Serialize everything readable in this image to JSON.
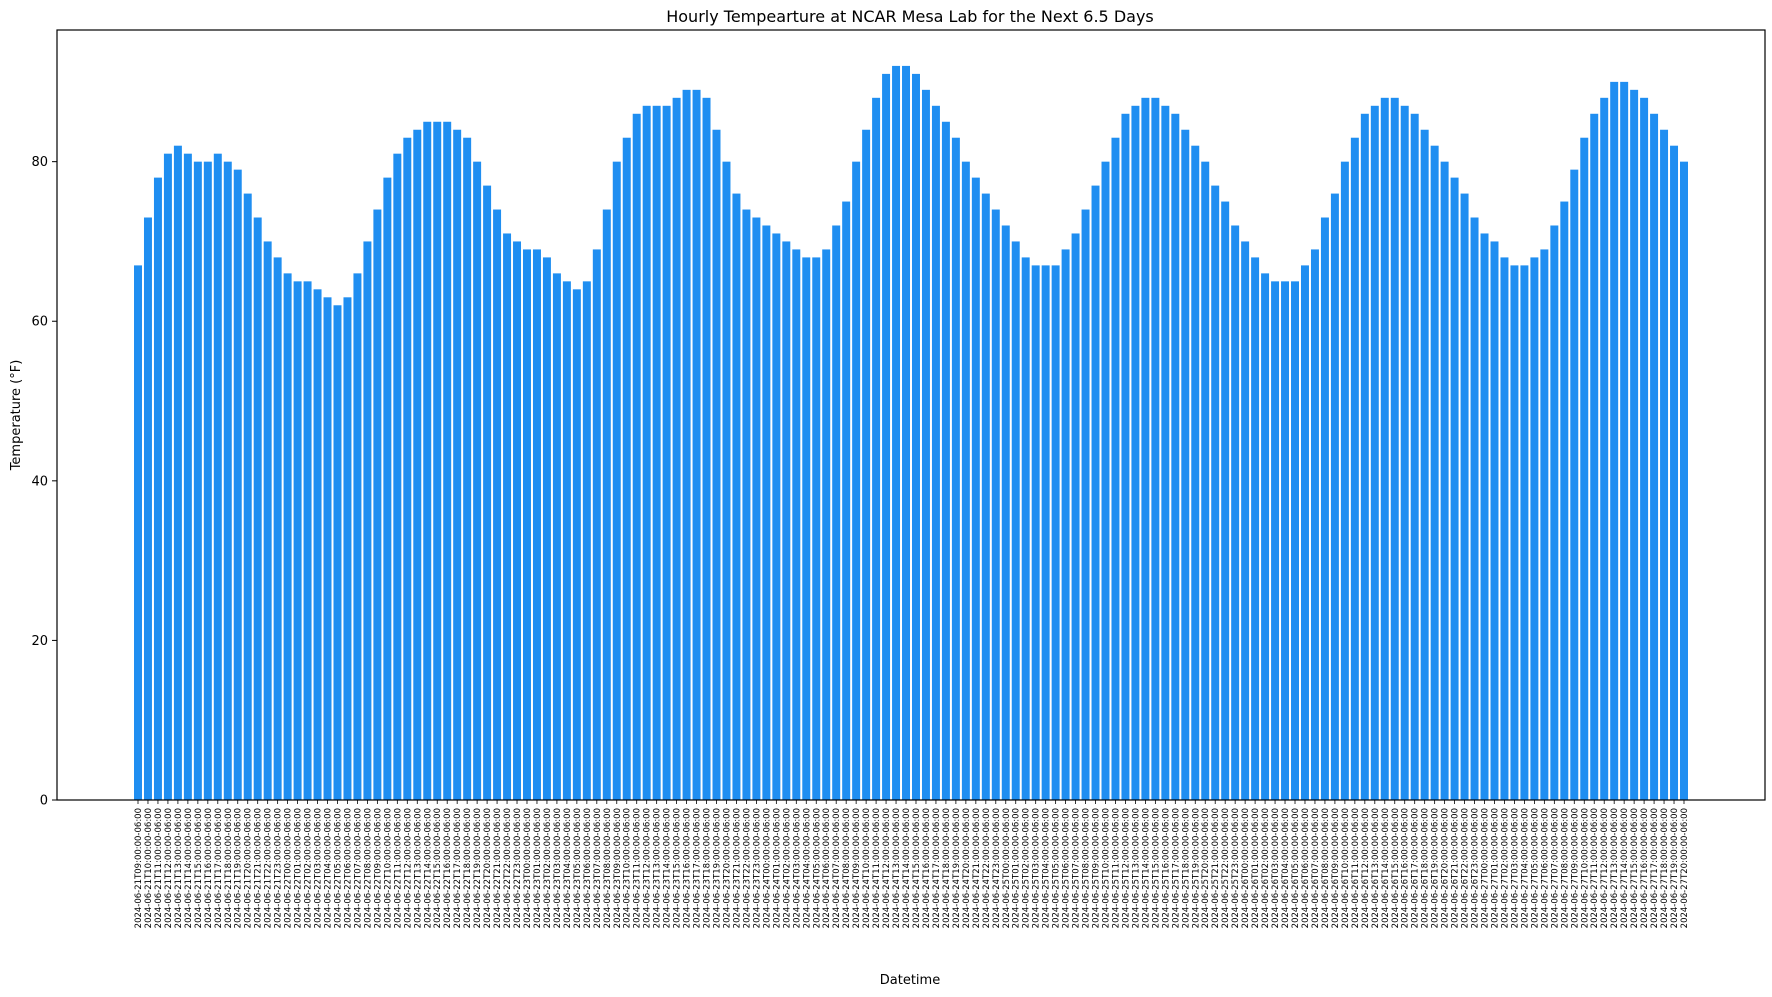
{
  "chart_data": {
    "type": "bar",
    "title": "Hourly Tempearture at NCAR Mesa Lab for the Next 6.5 Days",
    "xlabel": "Datetime",
    "ylabel": "Temperature (°F)",
    "ylim": [
      0,
      96.5
    ],
    "yticks": [
      0,
      20,
      40,
      60,
      80
    ],
    "grid": false,
    "bar_color": "#1f8ef1",
    "categories": [
      "2024-06-21T09:00:00-06:00",
      "2024-06-21T10:00:00-06:00",
      "2024-06-21T11:00:00-06:00",
      "2024-06-21T12:00:00-06:00",
      "2024-06-21T13:00:00-06:00",
      "2024-06-21T14:00:00-06:00",
      "2024-06-21T15:00:00-06:00",
      "2024-06-21T16:00:00-06:00",
      "2024-06-21T17:00:00-06:00",
      "2024-06-21T18:00:00-06:00",
      "2024-06-21T19:00:00-06:00",
      "2024-06-21T20:00:00-06:00",
      "2024-06-21T21:00:00-06:00",
      "2024-06-21T22:00:00-06:00",
      "2024-06-21T23:00:00-06:00",
      "2024-06-22T00:00:00-06:00",
      "2024-06-22T01:00:00-06:00",
      "2024-06-22T02:00:00-06:00",
      "2024-06-22T03:00:00-06:00",
      "2024-06-22T04:00:00-06:00",
      "2024-06-22T05:00:00-06:00",
      "2024-06-22T06:00:00-06:00",
      "2024-06-22T07:00:00-06:00",
      "2024-06-22T08:00:00-06:00",
      "2024-06-22T09:00:00-06:00",
      "2024-06-22T10:00:00-06:00",
      "2024-06-22T11:00:00-06:00",
      "2024-06-22T12:00:00-06:00",
      "2024-06-22T13:00:00-06:00",
      "2024-06-22T14:00:00-06:00",
      "2024-06-22T15:00:00-06:00",
      "2024-06-22T16:00:00-06:00",
      "2024-06-22T17:00:00-06:00",
      "2024-06-22T18:00:00-06:00",
      "2024-06-22T19:00:00-06:00",
      "2024-06-22T20:00:00-06:00",
      "2024-06-22T21:00:00-06:00",
      "2024-06-22T22:00:00-06:00",
      "2024-06-22T23:00:00-06:00",
      "2024-06-23T00:00:00-06:00",
      "2024-06-23T01:00:00-06:00",
      "2024-06-23T02:00:00-06:00",
      "2024-06-23T03:00:00-06:00",
      "2024-06-23T04:00:00-06:00",
      "2024-06-23T05:00:00-06:00",
      "2024-06-23T06:00:00-06:00",
      "2024-06-23T07:00:00-06:00",
      "2024-06-23T08:00:00-06:00",
      "2024-06-23T09:00:00-06:00",
      "2024-06-23T10:00:00-06:00",
      "2024-06-23T11:00:00-06:00",
      "2024-06-23T12:00:00-06:00",
      "2024-06-23T13:00:00-06:00",
      "2024-06-23T14:00:00-06:00",
      "2024-06-23T15:00:00-06:00",
      "2024-06-23T16:00:00-06:00",
      "2024-06-23T17:00:00-06:00",
      "2024-06-23T18:00:00-06:00",
      "2024-06-23T19:00:00-06:00",
      "2024-06-23T20:00:00-06:00",
      "2024-06-23T21:00:00-06:00",
      "2024-06-23T22:00:00-06:00",
      "2024-06-23T23:00:00-06:00",
      "2024-06-24T00:00:00-06:00",
      "2024-06-24T01:00:00-06:00",
      "2024-06-24T02:00:00-06:00",
      "2024-06-24T03:00:00-06:00",
      "2024-06-24T04:00:00-06:00",
      "2024-06-24T05:00:00-06:00",
      "2024-06-24T06:00:00-06:00",
      "2024-06-24T07:00:00-06:00",
      "2024-06-24T08:00:00-06:00",
      "2024-06-24T09:00:00-06:00",
      "2024-06-24T10:00:00-06:00",
      "2024-06-24T11:00:00-06:00",
      "2024-06-24T12:00:00-06:00",
      "2024-06-24T13:00:00-06:00",
      "2024-06-24T14:00:00-06:00",
      "2024-06-24T15:00:00-06:00",
      "2024-06-24T16:00:00-06:00",
      "2024-06-24T17:00:00-06:00",
      "2024-06-24T18:00:00-06:00",
      "2024-06-24T19:00:00-06:00",
      "2024-06-24T20:00:00-06:00",
      "2024-06-24T21:00:00-06:00",
      "2024-06-24T22:00:00-06:00",
      "2024-06-24T23:00:00-06:00",
      "2024-06-25T00:00:00-06:00",
      "2024-06-25T01:00:00-06:00",
      "2024-06-25T02:00:00-06:00",
      "2024-06-25T03:00:00-06:00",
      "2024-06-25T04:00:00-06:00",
      "2024-06-25T05:00:00-06:00",
      "2024-06-25T06:00:00-06:00",
      "2024-06-25T07:00:00-06:00",
      "2024-06-25T08:00:00-06:00",
      "2024-06-25T09:00:00-06:00",
      "2024-06-25T10:00:00-06:00",
      "2024-06-25T11:00:00-06:00",
      "2024-06-25T12:00:00-06:00",
      "2024-06-25T13:00:00-06:00",
      "2024-06-25T14:00:00-06:00",
      "2024-06-25T15:00:00-06:00",
      "2024-06-25T16:00:00-06:00",
      "2024-06-25T17:00:00-06:00",
      "2024-06-25T18:00:00-06:00",
      "2024-06-25T19:00:00-06:00",
      "2024-06-25T20:00:00-06:00",
      "2024-06-25T21:00:00-06:00",
      "2024-06-25T22:00:00-06:00",
      "2024-06-25T23:00:00-06:00",
      "2024-06-26T00:00:00-06:00",
      "2024-06-26T01:00:00-06:00",
      "2024-06-26T02:00:00-06:00",
      "2024-06-26T03:00:00-06:00",
      "2024-06-26T04:00:00-06:00",
      "2024-06-26T05:00:00-06:00",
      "2024-06-26T06:00:00-06:00",
      "2024-06-26T07:00:00-06:00",
      "2024-06-26T08:00:00-06:00",
      "2024-06-26T09:00:00-06:00",
      "2024-06-26T10:00:00-06:00",
      "2024-06-26T11:00:00-06:00",
      "2024-06-26T12:00:00-06:00",
      "2024-06-26T13:00:00-06:00",
      "2024-06-26T14:00:00-06:00",
      "2024-06-26T15:00:00-06:00",
      "2024-06-26T16:00:00-06:00",
      "2024-06-26T17:00:00-06:00",
      "2024-06-26T18:00:00-06:00",
      "2024-06-26T19:00:00-06:00",
      "2024-06-26T20:00:00-06:00",
      "2024-06-26T21:00:00-06:00",
      "2024-06-26T22:00:00-06:00",
      "2024-06-26T23:00:00-06:00",
      "2024-06-27T00:00:00-06:00",
      "2024-06-27T01:00:00-06:00",
      "2024-06-27T02:00:00-06:00",
      "2024-06-27T03:00:00-06:00",
      "2024-06-27T04:00:00-06:00",
      "2024-06-27T05:00:00-06:00",
      "2024-06-27T06:00:00-06:00",
      "2024-06-27T07:00:00-06:00",
      "2024-06-27T08:00:00-06:00",
      "2024-06-27T09:00:00-06:00",
      "2024-06-27T10:00:00-06:00",
      "2024-06-27T11:00:00-06:00",
      "2024-06-27T12:00:00-06:00",
      "2024-06-27T13:00:00-06:00",
      "2024-06-27T14:00:00-06:00",
      "2024-06-27T15:00:00-06:00",
      "2024-06-27T16:00:00-06:00",
      "2024-06-27T17:00:00-06:00",
      "2024-06-27T18:00:00-06:00",
      "2024-06-27T19:00:00-06:00",
      "2024-06-27T20:00:00-06:00"
    ],
    "values": [
      67,
      73,
      78,
      81,
      82,
      81,
      80,
      80,
      81,
      80,
      79,
      76,
      73,
      70,
      68,
      66,
      65,
      65,
      64,
      63,
      62,
      63,
      66,
      70,
      74,
      78,
      81,
      83,
      84,
      85,
      85,
      85,
      84,
      83,
      80,
      77,
      74,
      71,
      70,
      69,
      69,
      68,
      66,
      65,
      64,
      65,
      69,
      74,
      80,
      83,
      86,
      87,
      87,
      87,
      88,
      89,
      89,
      88,
      84,
      80,
      76,
      74,
      73,
      72,
      71,
      70,
      69,
      68,
      68,
      69,
      72,
      75,
      80,
      84,
      88,
      91,
      92,
      92,
      91,
      89,
      87,
      85,
      83,
      80,
      78,
      76,
      74,
      72,
      70,
      68,
      67,
      67,
      67,
      69,
      71,
      74,
      77,
      80,
      83,
      86,
      87,
      88,
      88,
      87,
      86,
      84,
      82,
      80,
      77,
      75,
      72,
      70,
      68,
      66,
      65,
      65,
      65,
      67,
      69,
      73,
      76,
      80,
      83,
      86,
      87,
      88,
      88,
      87,
      86,
      84,
      82,
      80,
      78,
      76,
      73,
      71,
      70,
      68,
      67,
      67,
      68,
      69,
      72,
      75,
      79,
      83,
      86,
      88,
      90,
      90,
      89,
      88,
      86,
      84,
      82,
      80
    ]
  }
}
